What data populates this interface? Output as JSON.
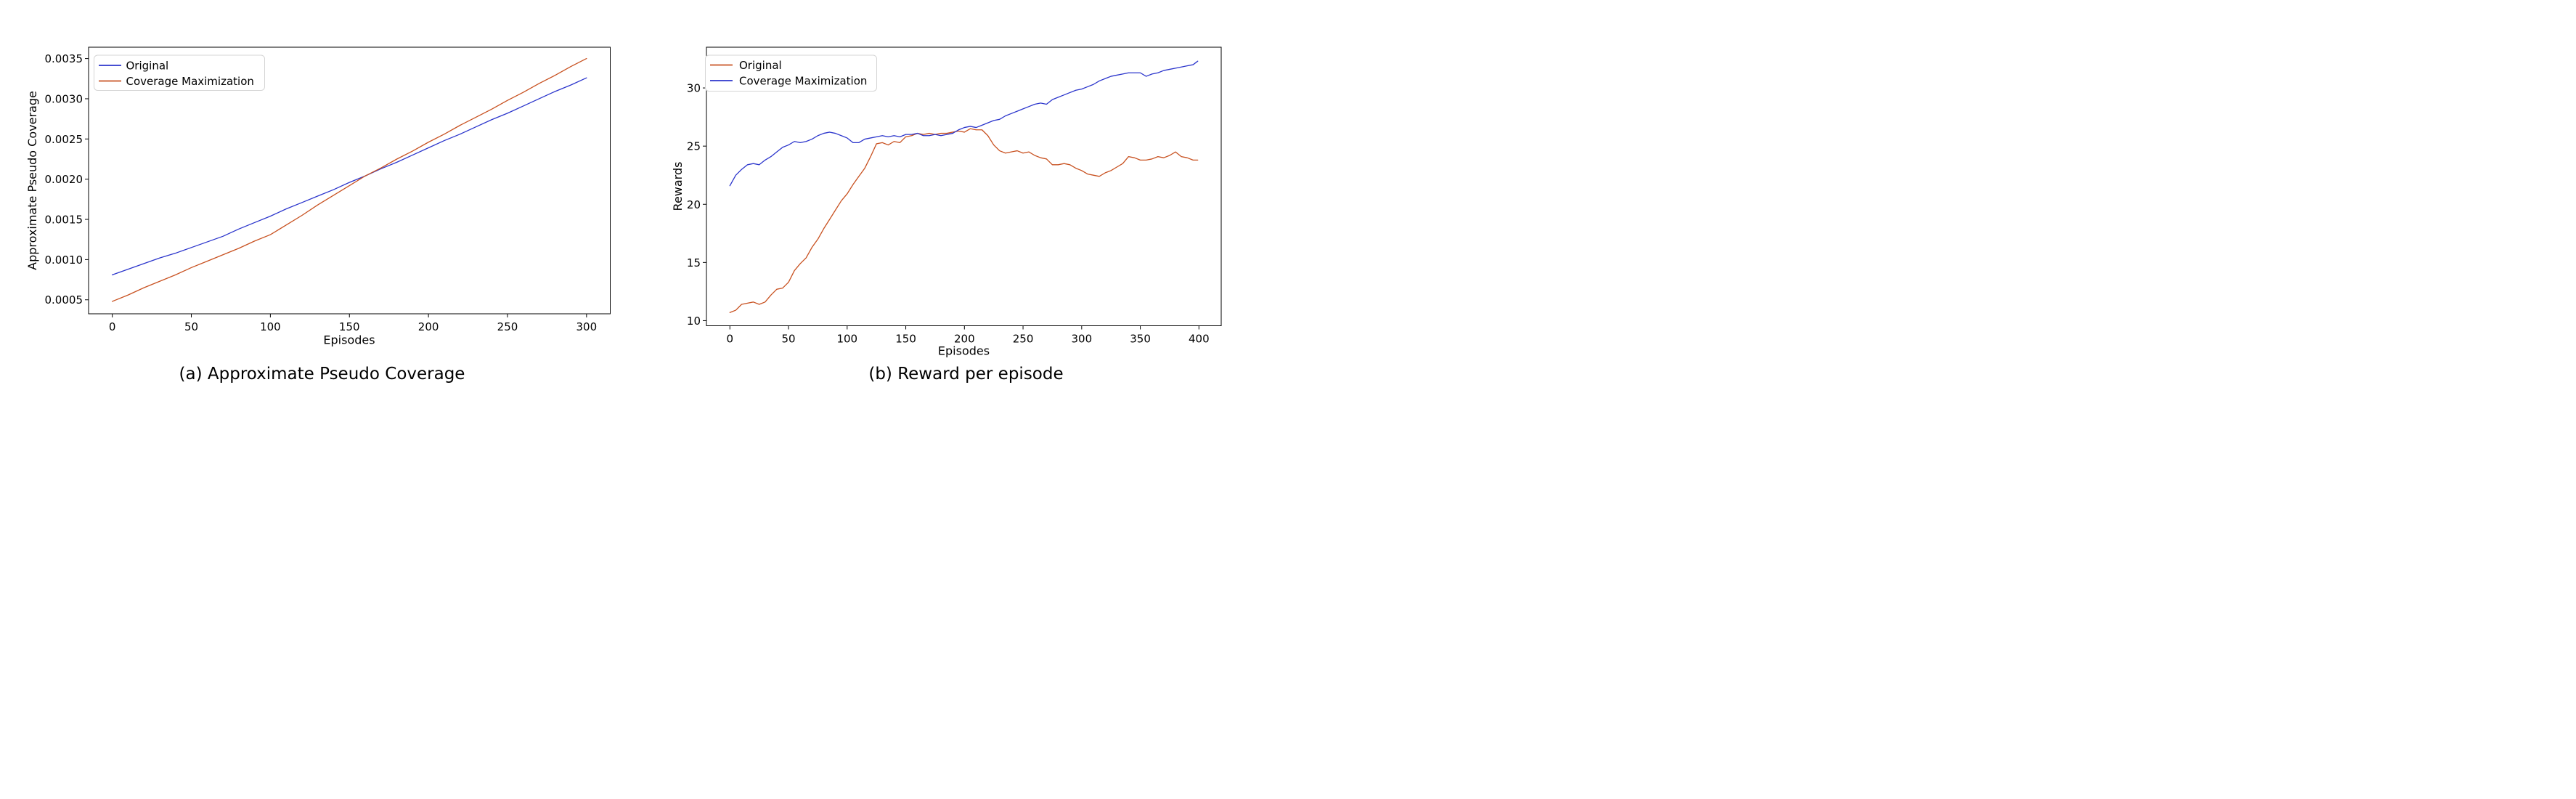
{
  "figure": {
    "background": "#ffffff",
    "caption_a": "(a) Approximate Pseudo Coverage",
    "caption_b": "(b) Reward per episode"
  },
  "chart_data": [
    {
      "type": "line",
      "title": "(a) Approximate Pseudo Coverage",
      "xlabel": "Episodes",
      "ylabel": "Approximate Pseudo Coverage",
      "grid": false,
      "legend_position": "upper left",
      "xlim": [
        -15,
        315
      ],
      "ylim": [
        0.000326,
        0.003641
      ],
      "xticks": [
        0,
        50,
        100,
        150,
        200,
        250,
        300
      ],
      "xtick_labels": [
        "0",
        "50",
        "100",
        "150",
        "200",
        "250",
        "300"
      ],
      "yticks": [
        0.0005,
        0.001,
        0.0015,
        0.002,
        0.0025,
        0.003,
        0.0035
      ],
      "ytick_labels": [
        "0.0005",
        "0.0010",
        "0.0015",
        "0.0020",
        "0.0025",
        "0.0030",
        "0.0035"
      ],
      "series": [
        {
          "name": "Original",
          "color": "#2b35cc",
          "x": [
            0,
            10,
            20,
            30,
            40,
            50,
            60,
            70,
            80,
            90,
            100,
            110,
            120,
            130,
            140,
            150,
            160,
            170,
            180,
            190,
            200,
            210,
            220,
            230,
            240,
            250,
            260,
            270,
            280,
            290,
            300
          ],
          "y": [
            0.00081,
            0.00088,
            0.00095,
            0.00102,
            0.00108,
            0.00115,
            0.00122,
            0.00129,
            0.00138,
            0.00146,
            0.00154,
            0.00163,
            0.00171,
            0.00179,
            0.00187,
            0.00196,
            0.00204,
            0.00213,
            0.00221,
            0.0023,
            0.00239,
            0.00248,
            0.00256,
            0.00265,
            0.00274,
            0.00282,
            0.00291,
            0.003,
            0.00309,
            0.00317,
            0.00326
          ]
        },
        {
          "name": "Coverage Maximization",
          "color": "#c85120",
          "x": [
            0,
            10,
            20,
            30,
            40,
            50,
            60,
            70,
            80,
            90,
            100,
            110,
            120,
            130,
            140,
            150,
            160,
            170,
            180,
            190,
            200,
            210,
            220,
            230,
            240,
            250,
            260,
            270,
            280,
            290,
            300
          ],
          "y": [
            0.00048,
            0.00056,
            0.00065,
            0.00073,
            0.00081,
            0.0009,
            0.00098,
            0.00106,
            0.00114,
            0.00123,
            0.00131,
            0.00143,
            0.00155,
            0.00168,
            0.0018,
            0.00192,
            0.00204,
            0.00214,
            0.00225,
            0.00235,
            0.00246,
            0.00256,
            0.00267,
            0.00277,
            0.00287,
            0.00298,
            0.00308,
            0.00319,
            0.00329,
            0.0034,
            0.0035
          ]
        }
      ]
    },
    {
      "type": "line",
      "title": "(b) Reward per episode",
      "xlabel": "Episodes",
      "ylabel": "Rewards",
      "grid": false,
      "legend_position": "upper left",
      "xlim": [
        -20,
        419
      ],
      "ylim": [
        9.56,
        33.5
      ],
      "xticks": [
        0,
        50,
        100,
        150,
        200,
        250,
        300,
        350,
        400
      ],
      "xtick_labels": [
        "0",
        "50",
        "100",
        "150",
        "200",
        "250",
        "300",
        "350",
        "400"
      ],
      "yticks": [
        10,
        15,
        20,
        25,
        30
      ],
      "ytick_labels": [
        "10",
        "15",
        "20",
        "25",
        "30"
      ],
      "series": [
        {
          "name": "Original",
          "color": "#c85120",
          "x": [
            0,
            5,
            10,
            15,
            20,
            25,
            30,
            35,
            40,
            45,
            50,
            55,
            60,
            65,
            70,
            75,
            80,
            85,
            90,
            95,
            100,
            105,
            110,
            115,
            120,
            125,
            130,
            135,
            140,
            145,
            150,
            155,
            160,
            165,
            170,
            175,
            180,
            185,
            190,
            195,
            200,
            205,
            210,
            215,
            220,
            225,
            230,
            235,
            240,
            245,
            250,
            255,
            260,
            265,
            270,
            275,
            280,
            285,
            290,
            295,
            300,
            305,
            310,
            315,
            320,
            325,
            330,
            335,
            340,
            345,
            350,
            355,
            360,
            365,
            370,
            375,
            380,
            385,
            390,
            395,
            399
          ],
          "y": [
            10.7,
            10.9,
            11.4,
            11.5,
            11.6,
            11.4,
            11.6,
            12.2,
            12.7,
            12.8,
            13.3,
            14.3,
            14.9,
            15.4,
            16.3,
            17.0,
            17.9,
            18.7,
            19.5,
            20.3,
            20.9,
            21.7,
            22.4,
            23.1,
            24.1,
            25.2,
            25.3,
            25.1,
            25.4,
            25.3,
            25.8,
            25.9,
            26.1,
            26.0,
            26.1,
            26.0,
            26.1,
            26.1,
            26.2,
            26.3,
            26.2,
            26.5,
            26.4,
            26.4,
            25.9,
            25.1,
            24.6,
            24.4,
            24.5,
            24.6,
            24.4,
            24.5,
            24.2,
            24.0,
            23.9,
            23.4,
            23.4,
            23.5,
            23.4,
            23.1,
            22.9,
            22.6,
            22.5,
            22.4,
            22.7,
            22.9,
            23.2,
            23.5,
            24.1,
            24.0,
            23.8,
            23.8,
            23.9,
            24.1,
            24.0,
            24.2,
            24.5,
            24.1,
            24.0,
            23.8,
            23.8
          ]
        },
        {
          "name": "Coverage Maximization",
          "color": "#2b35cc",
          "x": [
            0,
            5,
            10,
            15,
            20,
            25,
            30,
            35,
            40,
            45,
            50,
            55,
            60,
            65,
            70,
            75,
            80,
            85,
            90,
            95,
            100,
            105,
            110,
            115,
            120,
            125,
            130,
            135,
            140,
            145,
            150,
            155,
            160,
            165,
            170,
            175,
            180,
            185,
            190,
            195,
            200,
            205,
            210,
            215,
            220,
            225,
            230,
            235,
            240,
            245,
            250,
            255,
            260,
            265,
            270,
            275,
            280,
            285,
            290,
            295,
            300,
            305,
            310,
            315,
            320,
            325,
            330,
            335,
            340,
            345,
            350,
            355,
            360,
            365,
            370,
            375,
            380,
            385,
            390,
            395,
            399
          ],
          "y": [
            21.6,
            22.5,
            23.0,
            23.4,
            23.5,
            23.4,
            23.8,
            24.1,
            24.5,
            24.9,
            25.1,
            25.4,
            25.3,
            25.4,
            25.6,
            25.9,
            26.1,
            26.2,
            26.1,
            25.9,
            25.7,
            25.3,
            25.3,
            25.6,
            25.7,
            25.8,
            25.9,
            25.8,
            25.9,
            25.8,
            26.0,
            26.0,
            26.1,
            25.9,
            25.9,
            26.0,
            25.9,
            26.0,
            26.1,
            26.4,
            26.6,
            26.7,
            26.6,
            26.8,
            27.0,
            27.2,
            27.3,
            27.6,
            27.8,
            28.0,
            28.2,
            28.4,
            28.6,
            28.7,
            28.6,
            29.0,
            29.2,
            29.4,
            29.6,
            29.8,
            29.9,
            30.1,
            30.3,
            30.6,
            30.8,
            31.0,
            31.1,
            31.2,
            31.3,
            31.3,
            31.3,
            31.0,
            31.2,
            31.3,
            31.5,
            31.6,
            31.7,
            31.8,
            31.9,
            32.0,
            32.3
          ]
        }
      ]
    }
  ]
}
